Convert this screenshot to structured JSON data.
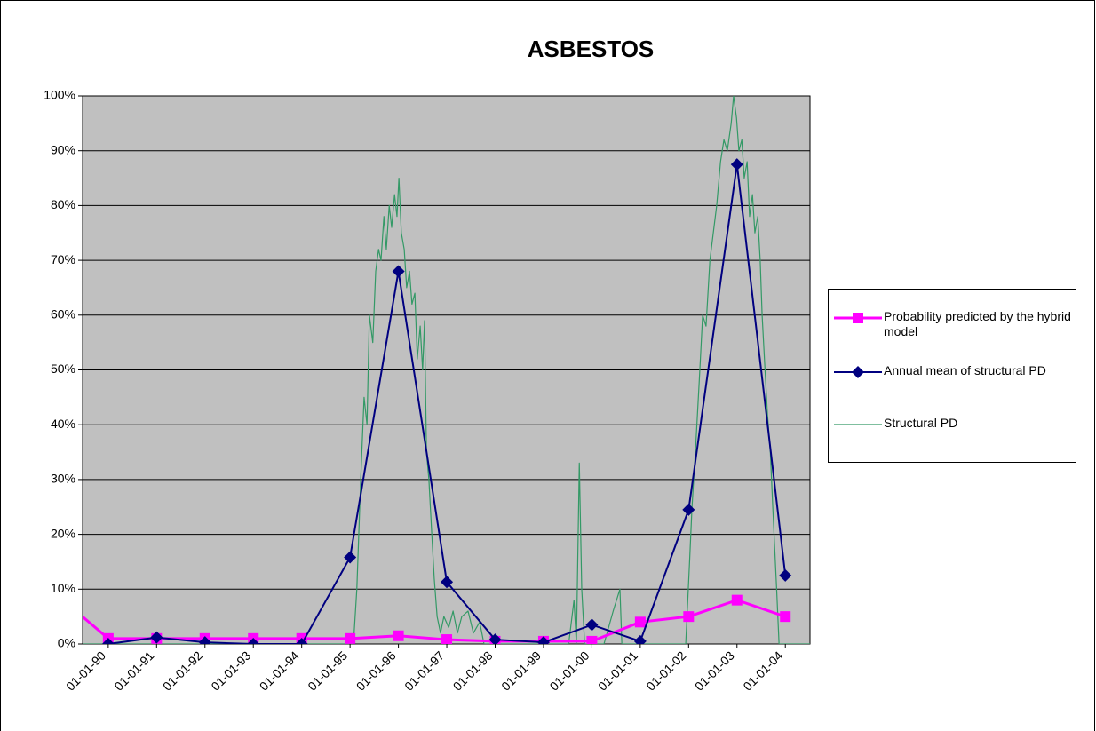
{
  "chart_data": {
    "type": "line",
    "title": "ASBESTOS",
    "xlim": [
      1989.47,
      2004.51
    ],
    "xticks": [
      {
        "value": 1990,
        "label": "01-01-90"
      },
      {
        "value": 1991,
        "label": "01-01-91"
      },
      {
        "value": 1992,
        "label": "01-01-92"
      },
      {
        "value": 1993,
        "label": "01-01-93"
      },
      {
        "value": 1994,
        "label": "01-01-94"
      },
      {
        "value": 1995,
        "label": "01-01-95"
      },
      {
        "value": 1996,
        "label": "01-01-96"
      },
      {
        "value": 1997,
        "label": "01-01-97"
      },
      {
        "value": 1998,
        "label": "01-01-98"
      },
      {
        "value": 1999,
        "label": "01-01-99"
      },
      {
        "value": 2000,
        "label": "01-01-00"
      },
      {
        "value": 2001,
        "label": "01-01-01"
      },
      {
        "value": 2002,
        "label": "01-01-02"
      },
      {
        "value": 2003,
        "label": "01-01-03"
      },
      {
        "value": 2004,
        "label": "01-01-04"
      }
    ],
    "ylim": [
      0,
      100
    ],
    "yticks": [
      {
        "value": 0,
        "label": "0%"
      },
      {
        "value": 10,
        "label": "10%"
      },
      {
        "value": 20,
        "label": "20%"
      },
      {
        "value": 30,
        "label": "30%"
      },
      {
        "value": 40,
        "label": "40%"
      },
      {
        "value": 50,
        "label": "50%"
      },
      {
        "value": 60,
        "label": "60%"
      },
      {
        "value": 70,
        "label": "70%"
      },
      {
        "value": 80,
        "label": "80%"
      },
      {
        "value": 90,
        "label": "90%"
      },
      {
        "value": 100,
        "label": "100%"
      }
    ],
    "grid": true,
    "plot_background": "#c0c0c0",
    "legend": "right",
    "series": [
      {
        "name": "Probability predicted by the hybrid model",
        "color": "#ff00ff",
        "marker": "square",
        "x": [
          1989.2,
          1990,
          1991,
          1992,
          1993,
          1994,
          1995,
          1996,
          1997,
          1998,
          1999,
          2000,
          2001,
          2002,
          2003,
          2004
        ],
        "values": [
          7,
          1,
          1,
          1,
          1,
          1,
          1,
          1.5,
          0.8,
          0.5,
          0.5,
          0.5,
          4,
          5,
          8,
          5
        ]
      },
      {
        "name": "Annual mean of structural PD",
        "color": "#000080",
        "marker": "diamond",
        "x": [
          1990,
          1991,
          1992,
          1993,
          1994,
          1995,
          1996,
          1997,
          1998,
          1999,
          2000,
          2001,
          2002,
          2003,
          2004
        ],
        "values": [
          0,
          1.2,
          0.3,
          0,
          0,
          15.8,
          68,
          11.3,
          0.8,
          0.3,
          3.5,
          0.5,
          24.5,
          87.5,
          12.5
        ]
      },
      {
        "name": "Structural PD",
        "color": "#339966",
        "marker": "none",
        "x": [
          1989.47,
          1995.07,
          1995.14,
          1995.22,
          1995.29,
          1995.35,
          1995.4,
          1995.47,
          1995.53,
          1995.59,
          1995.64,
          1995.7,
          1995.75,
          1995.81,
          1995.86,
          1995.92,
          1995.97,
          1996.01,
          1996.06,
          1996.12,
          1996.17,
          1996.23,
          1996.28,
          1996.34,
          1996.39,
          1996.45,
          1996.5,
          1996.54,
          1996.58,
          1996.63,
          1996.69,
          1996.74,
          1996.8,
          1996.87,
          1996.94,
          1997.04,
          1997.13,
          1997.22,
          1997.31,
          1997.44,
          1997.55,
          1997.68,
          1997.77,
          1999.52,
          1999.63,
          1999.68,
          1999.74,
          1999.79,
          1999.85,
          2000.25,
          2000.44,
          2000.58,
          2000.62,
          2001.94,
          2002.02,
          2002.07,
          2002.14,
          2002.22,
          2002.29,
          2002.36,
          2002.44,
          2002.51,
          2002.58,
          2002.66,
          2002.73,
          2002.8,
          2002.88,
          2002.93,
          2002.99,
          2003.04,
          2003.1,
          2003.15,
          2003.21,
          2003.26,
          2003.32,
          2003.37,
          2003.43,
          2003.48,
          2003.52,
          2003.58,
          2003.63,
          2003.69,
          2003.74,
          2003.82,
          2003.87,
          2004.51
        ],
        "values": [
          0,
          0,
          10,
          30,
          45,
          40,
          60,
          55,
          68,
          72,
          70,
          78,
          72,
          80,
          76,
          82,
          78,
          85,
          75,
          72,
          65,
          68,
          62,
          64,
          52,
          58,
          50,
          59,
          35,
          30,
          20,
          12,
          5,
          2,
          5,
          3,
          6,
          2,
          5,
          6,
          2,
          4,
          0,
          0,
          8,
          0,
          33,
          10,
          0,
          0,
          6,
          10,
          0,
          0,
          15,
          25,
          35,
          48,
          60,
          58,
          70,
          75,
          80,
          88,
          92,
          90,
          95,
          100,
          96,
          90,
          92,
          85,
          88,
          78,
          82,
          75,
          78,
          70,
          60,
          50,
          42,
          35,
          25,
          10,
          0,
          0
        ]
      }
    ]
  }
}
